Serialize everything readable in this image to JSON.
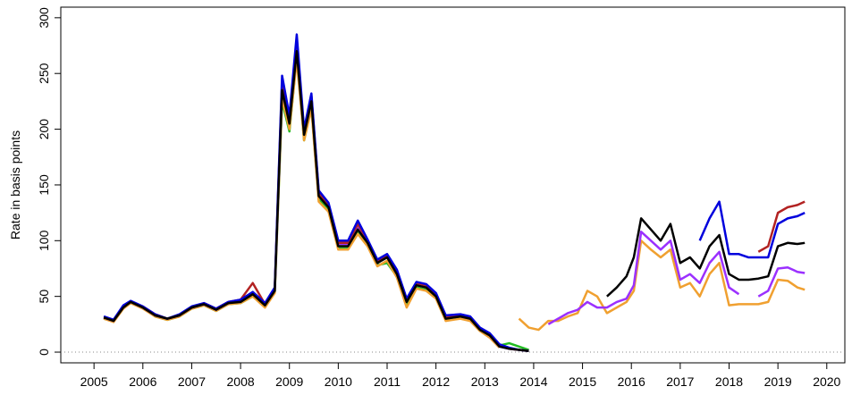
{
  "chart_data": {
    "type": "line",
    "ylabel": "Rate in basis points",
    "x": [
      2005.2,
      2005.4,
      2005.6,
      2005.75,
      2006.0,
      2006.25,
      2006.5,
      2006.75,
      2007.0,
      2007.25,
      2007.5,
      2007.75,
      2008.0,
      2008.25,
      2008.5,
      2008.7,
      2008.85,
      2009.0,
      2009.15,
      2009.3,
      2009.45,
      2009.6,
      2009.8,
      2010.0,
      2010.2,
      2010.4,
      2010.6,
      2010.8,
      2011.0,
      2011.2,
      2011.4,
      2011.6,
      2011.8,
      2012.0,
      2012.2,
      2012.5,
      2012.7,
      2012.9,
      2013.1,
      2013.3,
      2013.5,
      2013.7,
      2013.9,
      2014.1,
      2014.3,
      2014.5,
      2014.7,
      2014.9,
      2015.1,
      2015.3,
      2015.5,
      2015.7,
      2015.9,
      2016.05,
      2016.2,
      2016.4,
      2016.6,
      2016.8,
      2017.0,
      2017.2,
      2017.4,
      2017.6,
      2017.8,
      2018.0,
      2018.2,
      2018.4,
      2018.6,
      2018.8,
      2019.0,
      2019.2,
      2019.4,
      2019.55
    ],
    "series": [
      {
        "color": "#22bb22",
        "values": [
          30,
          28,
          40,
          44,
          40,
          32,
          29,
          32,
          39,
          42,
          37,
          43,
          44,
          50,
          41,
          54,
          225,
          198,
          265,
          190,
          220,
          137,
          128,
          93,
          93,
          107,
          96,
          78,
          80,
          68,
          42,
          58,
          56,
          49,
          29,
          31,
          29,
          20,
          14,
          6,
          8,
          5,
          2,
          null,
          null,
          null,
          null,
          null,
          null,
          null,
          null,
          null,
          null,
          null,
          null,
          null,
          null,
          null,
          null,
          null,
          null,
          null,
          null,
          null,
          null,
          null,
          null,
          null,
          null,
          null,
          null,
          null
        ]
      },
      {
        "color": "#f0a030",
        "values": [
          30,
          27,
          39,
          44,
          39,
          32,
          29,
          32,
          39,
          42,
          37,
          43,
          44,
          50,
          40,
          53,
          228,
          200,
          262,
          190,
          218,
          135,
          126,
          92,
          92,
          106,
          95,
          77,
          82,
          67,
          40,
          57,
          55,
          48,
          28,
          30,
          28,
          19,
          13,
          4,
          null,
          30,
          22,
          20,
          28,
          28,
          32,
          35,
          55,
          50,
          35,
          40,
          45,
          55,
          100,
          92,
          85,
          92,
          58,
          62,
          50,
          70,
          80,
          42,
          43,
          43,
          43,
          45,
          65,
          64,
          58,
          56
        ]
      },
      {
        "color": "#9b30ff",
        "values": [
          31,
          28,
          41,
          45,
          40,
          33,
          30,
          33,
          40,
          43,
          38,
          44,
          46,
          53,
          43,
          56,
          240,
          208,
          275,
          197,
          228,
          142,
          131,
          97,
          97,
          112,
          99,
          81,
          86,
          71,
          46,
          61,
          59,
          51,
          31,
          32,
          30,
          21,
          15,
          5,
          3,
          2,
          1,
          null,
          25,
          30,
          35,
          38,
          45,
          40,
          40,
          45,
          48,
          60,
          108,
          100,
          92,
          100,
          65,
          70,
          62,
          80,
          90,
          58,
          52,
          null,
          50,
          55,
          75,
          76,
          72,
          71
        ]
      },
      {
        "color": "#b22222",
        "values": [
          31,
          29,
          41,
          45,
          41,
          34,
          30,
          33,
          40,
          44,
          39,
          45,
          47,
          62,
          43,
          57,
          242,
          210,
          280,
          198,
          230,
          143,
          132,
          98,
          98,
          115,
          100,
          82,
          87,
          72,
          47,
          62,
          60,
          52,
          32,
          33,
          31,
          21,
          16,
          6,
          3,
          2,
          1,
          null,
          null,
          null,
          null,
          null,
          null,
          null,
          null,
          null,
          null,
          null,
          null,
          null,
          null,
          null,
          null,
          null,
          null,
          null,
          null,
          null,
          null,
          null,
          90,
          95,
          125,
          130,
          132,
          135
        ]
      },
      {
        "color": "#0000dd",
        "values": [
          32,
          29,
          42,
          46,
          41,
          34,
          30,
          34,
          41,
          44,
          39,
          45,
          47,
          54,
          44,
          58,
          248,
          212,
          285,
          200,
          232,
          145,
          134,
          100,
          100,
          118,
          101,
          83,
          88,
          74,
          48,
          63,
          61,
          53,
          33,
          34,
          32,
          22,
          17,
          7,
          4,
          2,
          1,
          null,
          null,
          null,
          null,
          null,
          null,
          null,
          null,
          null,
          null,
          null,
          null,
          null,
          null,
          null,
          null,
          null,
          100,
          120,
          135,
          88,
          88,
          85,
          85,
          85,
          115,
          120,
          122,
          125
        ]
      },
      {
        "color": "#000000",
        "values": [
          31,
          28,
          40,
          45,
          40,
          33,
          30,
          33,
          40,
          43,
          38,
          44,
          45,
          52,
          42,
          55,
          235,
          205,
          270,
          195,
          225,
          140,
          130,
          95,
          95,
          110,
          98,
          80,
          85,
          70,
          45,
          60,
          58,
          50,
          30,
          32,
          30,
          20,
          15,
          5,
          3,
          2,
          1,
          null,
          null,
          null,
          null,
          null,
          null,
          null,
          50,
          58,
          68,
          85,
          120,
          110,
          100,
          115,
          80,
          85,
          75,
          95,
          105,
          70,
          65,
          65,
          66,
          68,
          95,
          98,
          97,
          98
        ]
      }
    ],
    "xlim": [
      2004.32,
      2020.37
    ],
    "ylim": [
      -9.6,
      309.5
    ],
    "xticks": [
      2005,
      2006,
      2007,
      2008,
      2009,
      2010,
      2011,
      2012,
      2013,
      2014,
      2015,
      2016,
      2017,
      2018,
      2019,
      2020
    ],
    "yticks": [
      0,
      50,
      100,
      150,
      200,
      250,
      300
    ],
    "reference_line": 0
  }
}
